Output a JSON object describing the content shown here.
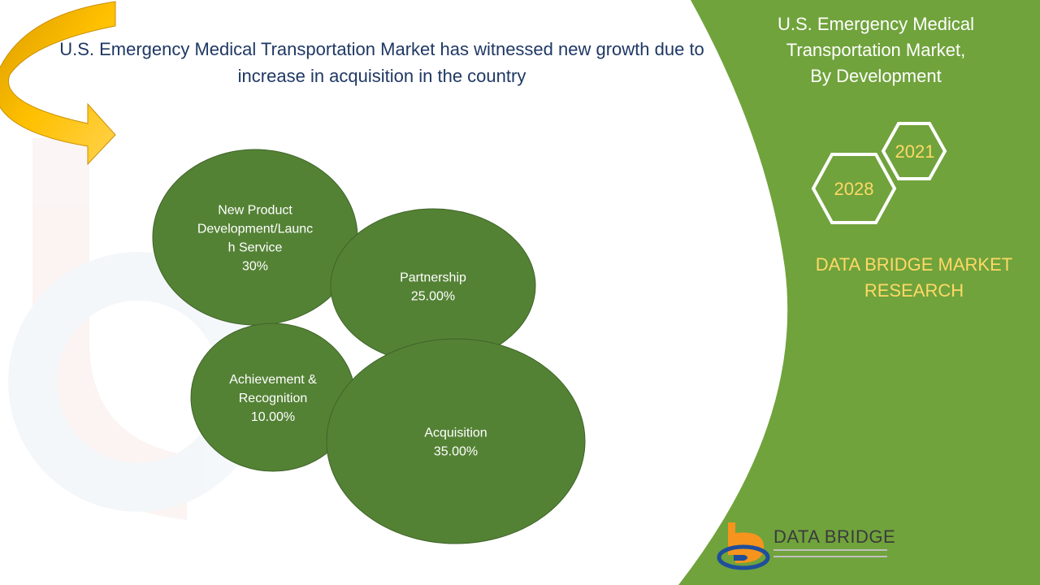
{
  "headline": "U.S. Emergency Medical Transportation Market has witnessed new growth due to increase in acquisition in the country",
  "side_panel": {
    "title_lines": [
      "U.S. Emergency Medical",
      "Transportation Market,",
      "By Development"
    ],
    "hex_badges": [
      "2021",
      "2028"
    ],
    "brand_lines": [
      "DATA BRIDGE MARKET",
      "RESEARCH"
    ]
  },
  "logo": {
    "text": "DATA BRIDGE"
  },
  "colors": {
    "panel_green": "#70a33c",
    "bubble_green": "#548235",
    "headline_blue": "#1f3864",
    "brand_yellow": "#ffd966",
    "arrow_gold": "#ffc000",
    "logo_orange": "#f7941d",
    "logo_blue": "#1f4e9a"
  },
  "chart_data": {
    "type": "bubble",
    "series": [
      {
        "label_lines": [
          "New Product",
          "Development/Launc",
          "h Service"
        ],
        "value": 30,
        "value_label": "30%"
      },
      {
        "label_lines": [
          "Partnership"
        ],
        "value": 25,
        "value_label": "25.00%"
      },
      {
        "label_lines": [
          "Achievement &",
          "Recognition"
        ],
        "value": 10,
        "value_label": "10.00%"
      },
      {
        "label_lines": [
          "Acquisition"
        ],
        "value": 35,
        "value_label": "35.00%"
      }
    ]
  }
}
